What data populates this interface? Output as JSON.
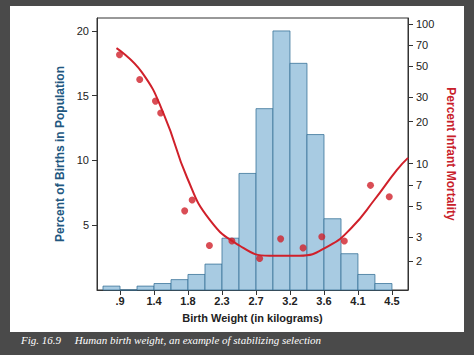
{
  "chart_data": {
    "type": "histogram",
    "caption": "Fig. 16.9     Human birth weight, an example of stabilizing selection",
    "xlabel": "Birth Weight (in kilograms)",
    "ylabel": "Percent of Births in Population",
    "y2label": "Percent Infant Mortality",
    "xlim": [
      0.6,
      4.75
    ],
    "xticks": [
      {
        "value": 0.907,
        "label": ".9"
      },
      {
        "value": 1.361,
        "label": "1.4"
      },
      {
        "value": 1.814,
        "label": "1.8"
      },
      {
        "value": 2.268,
        "label": "2.3"
      },
      {
        "value": 2.722,
        "label": "2.7"
      },
      {
        "value": 3.175,
        "label": "3.2"
      },
      {
        "value": 3.629,
        "label": "3.6"
      },
      {
        "value": 4.082,
        "label": "4.1"
      },
      {
        "value": 4.536,
        "label": "4.5"
      }
    ],
    "ylim": [
      0,
      21
    ],
    "yticks": [
      5,
      10,
      15,
      20
    ],
    "y2lim": [
      1.25,
      110
    ],
    "y2ticks": [
      2,
      3,
      5,
      7,
      10,
      20,
      30,
      50,
      70,
      100
    ],
    "log": "y2",
    "grid": false,
    "series": [
      {
        "name": "Percent of Births in Population",
        "type": "histogram",
        "color": "#a8cbe2",
        "bins": [
          0.68,
          0.907,
          1.134,
          1.361,
          1.588,
          1.814,
          2.041,
          2.268,
          2.495,
          2.722,
          2.948,
          3.175,
          3.402,
          3.629,
          3.856,
          4.082,
          4.309,
          4.536
        ],
        "values": [
          0.3,
          0,
          0.3,
          0.5,
          0.8,
          1.2,
          2.0,
          4.0,
          9.0,
          14.0,
          20.0,
          17.5,
          12.0,
          5.5,
          2.8,
          1.2,
          0.5
        ]
      },
      {
        "name": "Percent Infant Mortality",
        "type": "scatter",
        "axis": "y2",
        "color": "#d0202a",
        "marker": "circle",
        "x": [
          0.9,
          1.17,
          1.38,
          1.45,
          1.77,
          1.87,
          2.1,
          2.4,
          2.77,
          3.05,
          3.35,
          3.6,
          3.9,
          4.25,
          4.5
        ],
        "values": [
          60,
          40,
          28,
          23,
          4.6,
          5.5,
          2.6,
          2.8,
          2.1,
          2.9,
          2.5,
          3.0,
          2.8,
          7,
          5.8
        ]
      },
      {
        "name": "Percent Infant Mortality",
        "type": "line",
        "axis": "y2",
        "color": "#d0202a",
        "line_style": "solid",
        "x": [
          0.86,
          1.2,
          1.5,
          1.8,
          2.1,
          2.5,
          2.9,
          3.3,
          3.7,
          4.0,
          4.3,
          4.6,
          4.75
        ],
        "values": [
          67,
          45,
          22,
          8,
          4,
          2.6,
          2.2,
          2.2,
          2.6,
          3.5,
          5.5,
          9,
          11
        ]
      }
    ]
  }
}
